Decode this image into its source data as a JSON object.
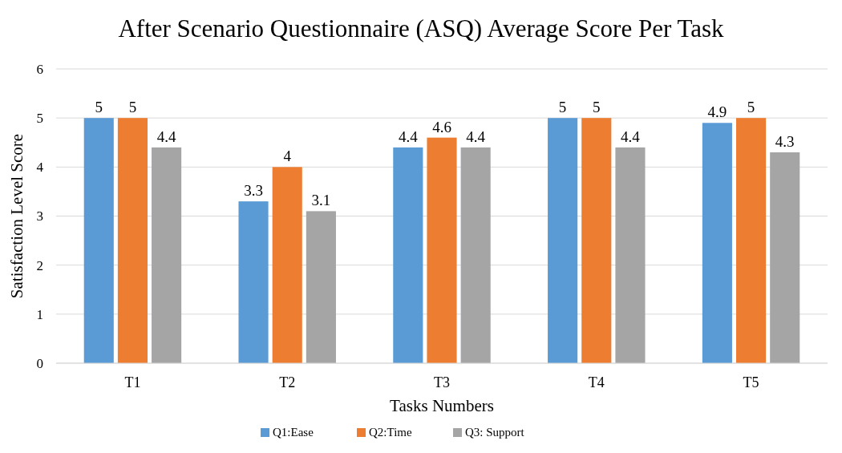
{
  "chart_data": {
    "type": "bar",
    "title": "After Scenario Questionnaire (ASQ) Average Score Per Task",
    "xlabel": "Tasks Numbers",
    "ylabel": "Satisfaction Level Score",
    "categories": [
      "T1",
      "T2",
      "T3",
      "T4",
      "T5"
    ],
    "series": [
      {
        "name": "Q1:Ease",
        "color": "#5b9bd5",
        "values": [
          5,
          3.3,
          4.4,
          5,
          4.9
        ]
      },
      {
        "name": "Q2:Time",
        "color": "#ed7d31",
        "values": [
          5,
          4,
          4.6,
          5,
          5
        ]
      },
      {
        "name": "Q3: Support",
        "color": "#a5a5a5",
        "values": [
          4.4,
          3.1,
          4.4,
          4.4,
          4.3
        ]
      }
    ],
    "ylim": [
      0,
      6
    ],
    "yticks": [
      0,
      1,
      2,
      3,
      4,
      5,
      6
    ],
    "grid": "y",
    "legend": "bottom",
    "data_labels": true
  }
}
